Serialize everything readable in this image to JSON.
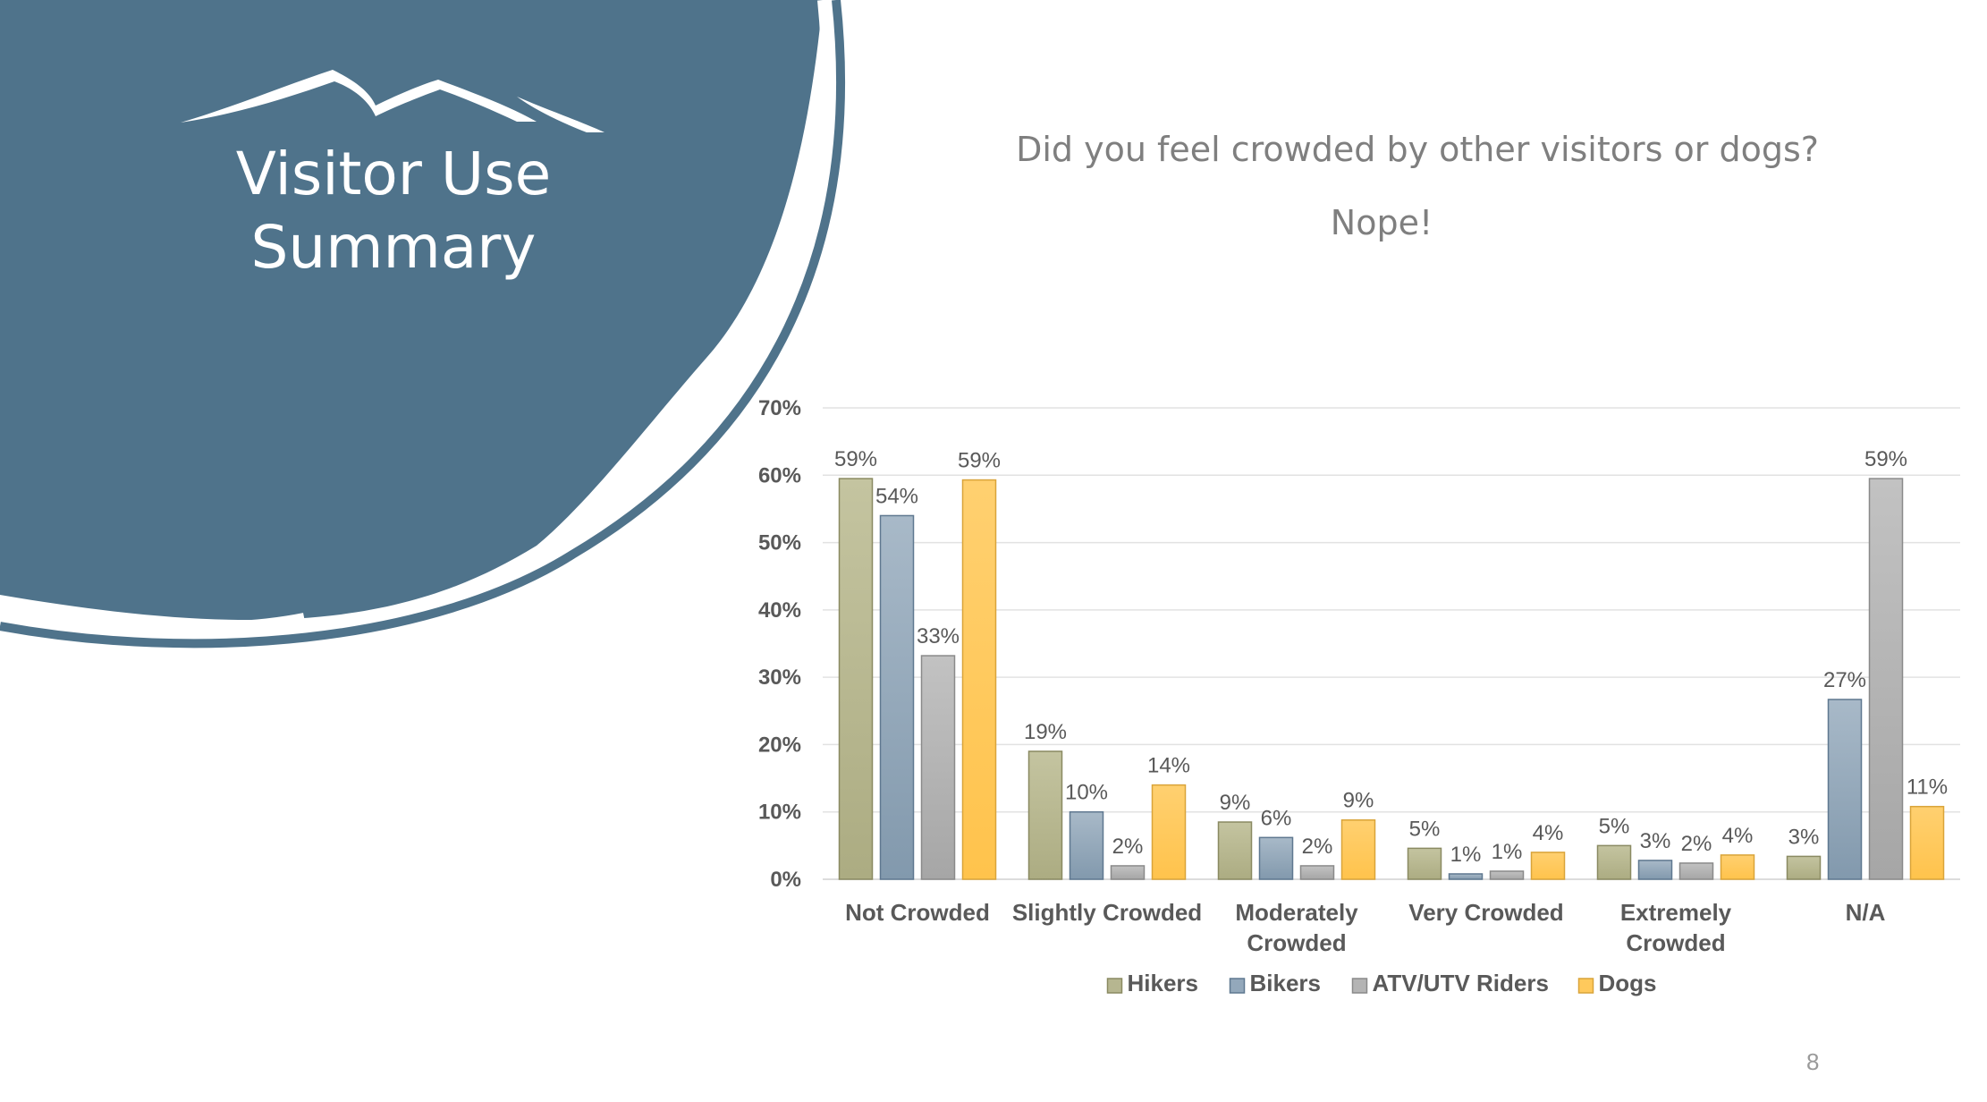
{
  "slide": {
    "title_line1": "Visitor Use",
    "title_line2": "Summary",
    "page_number": "8"
  },
  "colors": {
    "circle": "#4f738b",
    "hikers": "#b6b690",
    "bikers": "#93a8bb",
    "atv": "#b4b4b4",
    "dogs": "#ffc95c"
  },
  "chart_data": {
    "type": "bar",
    "title": "Did you feel crowded by other visitors or dogs?",
    "subtitle": "Nope!",
    "categories": [
      [
        "Not Crowded"
      ],
      [
        "Slightly Crowded"
      ],
      [
        "Moderately",
        "Crowded"
      ],
      [
        "Very Crowded"
      ],
      [
        "Extremely",
        "Crowded"
      ],
      [
        "N/A"
      ]
    ],
    "series": [
      {
        "name": "Hikers",
        "values": [
          59,
          19,
          9,
          5,
          5,
          3
        ]
      },
      {
        "name": "Bikers",
        "values": [
          54,
          10,
          6,
          1,
          3,
          27
        ]
      },
      {
        "name": "ATV/UTV Riders",
        "values": [
          33,
          2,
          2,
          1,
          2,
          59
        ]
      },
      {
        "name": "Dogs",
        "values": [
          59,
          14,
          9,
          4,
          4,
          11
        ]
      }
    ],
    "plotted_values": [
      [
        59.5,
        19.0,
        8.5,
        4.6,
        5.0,
        3.4
      ],
      [
        54.0,
        10.0,
        6.2,
        0.8,
        2.8,
        26.7
      ],
      [
        33.2,
        2.0,
        2.0,
        1.2,
        2.4,
        59.5
      ],
      [
        59.3,
        14.0,
        8.8,
        4.0,
        3.6,
        10.8
      ]
    ],
    "ylim": [
      0,
      70
    ],
    "y_ticks": [
      0,
      10,
      20,
      30,
      40,
      50,
      60,
      70
    ],
    "y_format": "percent",
    "grid": true,
    "legend": "bottom"
  }
}
